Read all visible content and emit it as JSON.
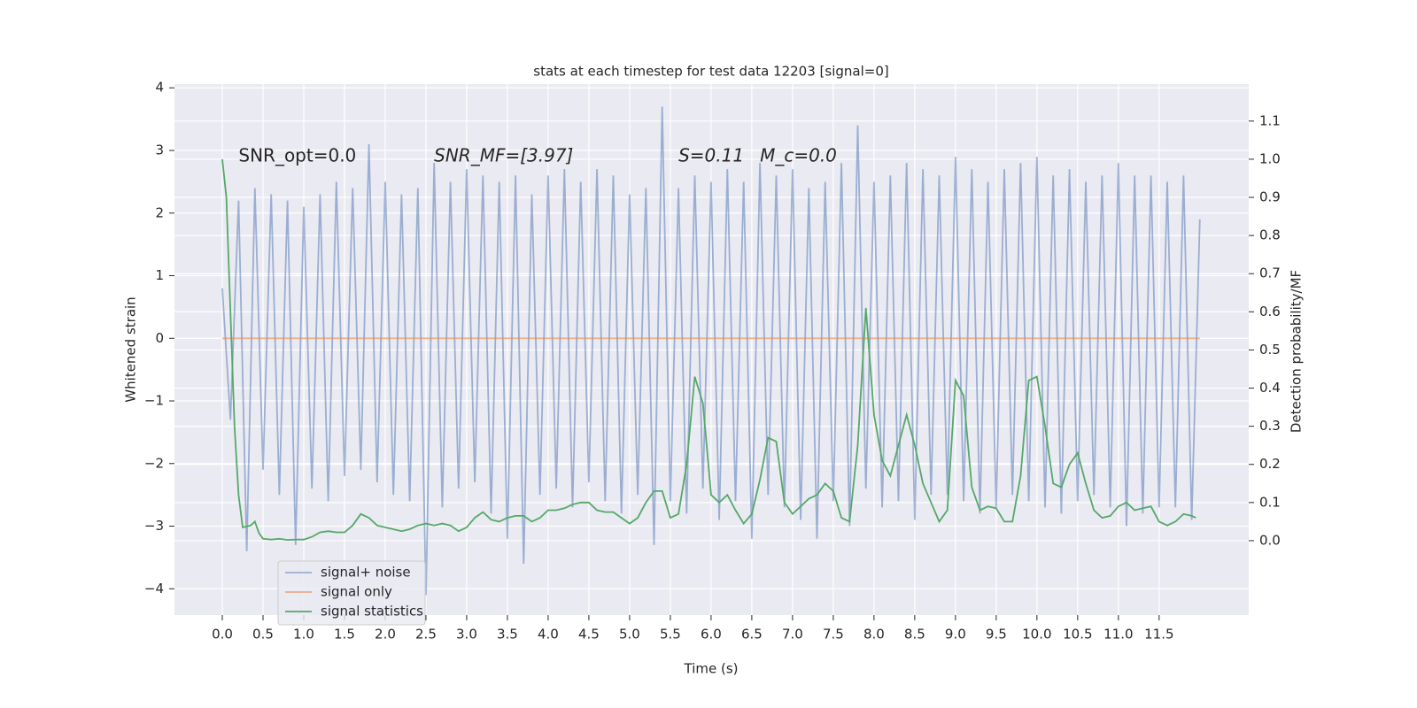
{
  "chart_data": {
    "type": "line",
    "title": "stats at each timestep for test data 12203 [signal=0]",
    "xlabel": "Time (s)",
    "ylabel": "Whitened strain",
    "y2label": "Detection probability/MF",
    "annotations": [
      {
        "text": "SNR_opt=0.0",
        "x": 0.2,
        "y": 2.9
      },
      {
        "text": "SNR_MF=[3.97]",
        "x": 2.6,
        "y": 2.9
      },
      {
        "text": "S=0.11",
        "x": 5.6,
        "y": 2.9
      },
      {
        "text": "M_c=0.0",
        "x": 6.6,
        "y": 2.9
      }
    ],
    "xlim": [
      -0.587,
      12.6
    ],
    "ylim": [
      -4.42,
      4.06
    ],
    "y2lim": [
      -0.195,
      1.197
    ],
    "xticks": [
      {
        "value": 0,
        "label": "0.0"
      },
      0.5,
      {
        "value": 1,
        "label": "1.0"
      },
      1.5,
      {
        "value": 2,
        "label": "2.0"
      },
      2.5,
      {
        "value": 3,
        "label": "3.0"
      },
      3.5,
      {
        "value": 4,
        "label": "4.0"
      },
      4.5,
      {
        "value": 5,
        "label": "5.0"
      },
      5.5,
      {
        "value": 6,
        "label": "6.0"
      },
      6.5,
      {
        "value": 7,
        "label": "7.0"
      },
      7.5,
      {
        "value": 8,
        "label": "8.0"
      },
      8.5,
      {
        "value": 9,
        "label": "9.0"
      },
      9.5,
      {
        "value": 10,
        "label": "10.0"
      },
      10.5,
      {
        "value": 11,
        "label": "11.0"
      },
      11.5
    ],
    "yticks": [
      {
        "value": -4,
        "label": "−4"
      },
      {
        "value": -3,
        "label": "−3"
      },
      {
        "value": -2,
        "label": "−2"
      },
      {
        "value": -1,
        "label": "−1"
      },
      0,
      1,
      2,
      3,
      4
    ],
    "y2ticks": [
      {
        "value": 0,
        "label": "0.0"
      },
      0.1,
      0.2,
      0.3,
      0.4,
      0.5,
      0.6,
      0.7,
      0.8,
      0.9,
      {
        "value": 1,
        "label": "1.0"
      },
      1.1
    ],
    "grid": true,
    "legend": "lower left",
    "series": [
      {
        "name": "signal+ noise",
        "color": "#4c72b0",
        "opacity": 0.5,
        "x": [
          0,
          0.1,
          0.2,
          0.3,
          0.4,
          0.5,
          0.6,
          0.7,
          0.8,
          0.9,
          1,
          1.1,
          1.2,
          1.3,
          1.4,
          1.5,
          1.6,
          1.7,
          1.8,
          1.9,
          2,
          2.1,
          2.2,
          2.3,
          2.4,
          2.5,
          2.6,
          2.7,
          2.8,
          2.9,
          3,
          3.1,
          3.2,
          3.3,
          3.4,
          3.5,
          3.6,
          3.7,
          3.8,
          3.9,
          4,
          4.1,
          4.2,
          4.3,
          4.4,
          4.5,
          4.6,
          4.7,
          4.8,
          4.9,
          5,
          5.1,
          5.2,
          5.3,
          5.4,
          5.5,
          5.6,
          5.7,
          5.8,
          5.9,
          6,
          6.1,
          6.2,
          6.3,
          6.4,
          6.5,
          6.6,
          6.7,
          6.8,
          6.9,
          7,
          7.1,
          7.2,
          7.3,
          7.4,
          7.5,
          7.6,
          7.7,
          7.8,
          7.9,
          8,
          8.1,
          8.2,
          8.3,
          8.4,
          8.5,
          8.6,
          8.7,
          8.8,
          8.9,
          9,
          9.1,
          9.2,
          9.3,
          9.4,
          9.5,
          9.6,
          9.7,
          9.8,
          9.9,
          10,
          10.1,
          10.2,
          10.3,
          10.4,
          10.5,
          10.6,
          10.7,
          10.8,
          10.9,
          11,
          11.1,
          11.2,
          11.3,
          11.4,
          11.5,
          11.6,
          11.7,
          11.8,
          11.9,
          12
        ],
        "values": [
          0.8,
          -1.3,
          2.2,
          -3.4,
          2.4,
          -2.1,
          2.3,
          -2.5,
          2.2,
          -3.3,
          2.1,
          -2.4,
          2.3,
          -2.6,
          2.5,
          -2.2,
          2.4,
          -2.1,
          3.1,
          -2.3,
          2.5,
          -2.5,
          2.3,
          -2.6,
          2.4,
          -4.1,
          2.8,
          -2.7,
          2.5,
          -2.4,
          2.7,
          -2.3,
          2.6,
          -2.8,
          2.5,
          -3.2,
          2.6,
          -3.6,
          2.3,
          -2.5,
          2.6,
          -2.4,
          2.7,
          -2.7,
          2.5,
          -2.3,
          2.7,
          -2.6,
          2.6,
          -2.8,
          2.3,
          -2.5,
          2.4,
          -3.3,
          3.7,
          -2.6,
          2.4,
          -2.8,
          2.6,
          -2.4,
          2.5,
          -2.9,
          2.7,
          -2.6,
          2.5,
          -3.2,
          2.8,
          -2.5,
          2.6,
          -2.7,
          2.7,
          -2.9,
          2.4,
          -3.2,
          2.5,
          -2.6,
          2.8,
          -3.0,
          3.4,
          -2.4,
          2.5,
          -2.7,
          2.6,
          -2.6,
          2.8,
          -2.9,
          2.7,
          -2.5,
          2.6,
          -2.5,
          2.9,
          -2.6,
          2.7,
          -2.8,
          2.5,
          -2.7,
          2.7,
          -2.5,
          2.8,
          -2.6,
          2.9,
          -2.7,
          2.6,
          -2.8,
          2.7,
          -2.6,
          2.5,
          -2.5,
          2.6,
          -2.7,
          2.8,
          -3.0,
          2.6,
          -2.8,
          2.6,
          -2.7,
          2.5,
          -2.7,
          2.6,
          -2.9,
          1.9
        ]
      },
      {
        "name": "signal only",
        "color": "#dd8452",
        "opacity": 0.6,
        "x": [
          0,
          12
        ],
        "values": [
          0,
          0
        ]
      },
      {
        "name": "signal statistics",
        "color": "#55a868",
        "opacity": 1,
        "axis": "y2",
        "x": [
          0,
          0.05,
          0.1,
          0.15,
          0.2,
          0.25,
          0.35,
          0.4,
          0.45,
          0.5,
          0.6,
          0.7,
          0.8,
          0.9,
          1,
          1.1,
          1.2,
          1.3,
          1.4,
          1.5,
          1.6,
          1.7,
          1.8,
          1.9,
          2,
          2.1,
          2.2,
          2.3,
          2.4,
          2.5,
          2.6,
          2.7,
          2.8,
          2.9,
          3,
          3.1,
          3.2,
          3.3,
          3.4,
          3.5,
          3.6,
          3.7,
          3.8,
          3.9,
          4,
          4.1,
          4.2,
          4.3,
          4.4,
          4.5,
          4.6,
          4.7,
          4.8,
          4.9,
          5,
          5.1,
          5.2,
          5.3,
          5.4,
          5.5,
          5.6,
          5.7,
          5.8,
          5.9,
          6,
          6.1,
          6.2,
          6.3,
          6.4,
          6.5,
          6.6,
          6.7,
          6.8,
          6.9,
          7,
          7.1,
          7.2,
          7.3,
          7.4,
          7.5,
          7.6,
          7.7,
          7.8,
          7.9,
          8,
          8.1,
          8.2,
          8.3,
          8.4,
          8.5,
          8.6,
          8.7,
          8.8,
          8.9,
          9,
          9.1,
          9.2,
          9.3,
          9.4,
          9.5,
          9.6,
          9.7,
          9.8,
          9.9,
          10,
          10.1,
          10.2,
          10.3,
          10.4,
          10.5,
          10.6,
          10.7,
          10.8,
          10.9,
          11,
          11.1,
          11.2,
          11.3,
          11.4,
          11.5,
          11.6,
          11.7,
          11.8,
          11.9,
          11.95
        ],
        "values": [
          1.0,
          0.9,
          0.6,
          0.3,
          0.12,
          0.035,
          0.04,
          0.05,
          0.02,
          0.005,
          0.003,
          0.005,
          0.002,
          0.003,
          0.003,
          0.01,
          0.022,
          0.025,
          0.022,
          0.022,
          0.04,
          0.07,
          0.06,
          0.04,
          0.035,
          0.03,
          0.025,
          0.03,
          0.04,
          0.045,
          0.04,
          0.045,
          0.04,
          0.025,
          0.035,
          0.06,
          0.075,
          0.055,
          0.05,
          0.06,
          0.065,
          0.065,
          0.05,
          0.06,
          0.08,
          0.08,
          0.085,
          0.095,
          0.1,
          0.1,
          0.08,
          0.075,
          0.075,
          0.06,
          0.045,
          0.06,
          0.1,
          0.13,
          0.13,
          0.06,
          0.07,
          0.2,
          0.43,
          0.36,
          0.12,
          0.1,
          0.12,
          0.08,
          0.045,
          0.07,
          0.16,
          0.27,
          0.26,
          0.1,
          0.07,
          0.09,
          0.11,
          0.12,
          0.15,
          0.13,
          0.06,
          0.05,
          0.25,
          0.61,
          0.33,
          0.21,
          0.17,
          0.25,
          0.33,
          0.25,
          0.15,
          0.1,
          0.05,
          0.08,
          0.42,
          0.38,
          0.14,
          0.08,
          0.09,
          0.085,
          0.05,
          0.05,
          0.17,
          0.42,
          0.43,
          0.3,
          0.15,
          0.14,
          0.2,
          0.23,
          0.15,
          0.08,
          0.06,
          0.065,
          0.09,
          0.1,
          0.08,
          0.085,
          0.09,
          0.05,
          0.04,
          0.05,
          0.07,
          0.065,
          0.06
        ]
      }
    ]
  }
}
